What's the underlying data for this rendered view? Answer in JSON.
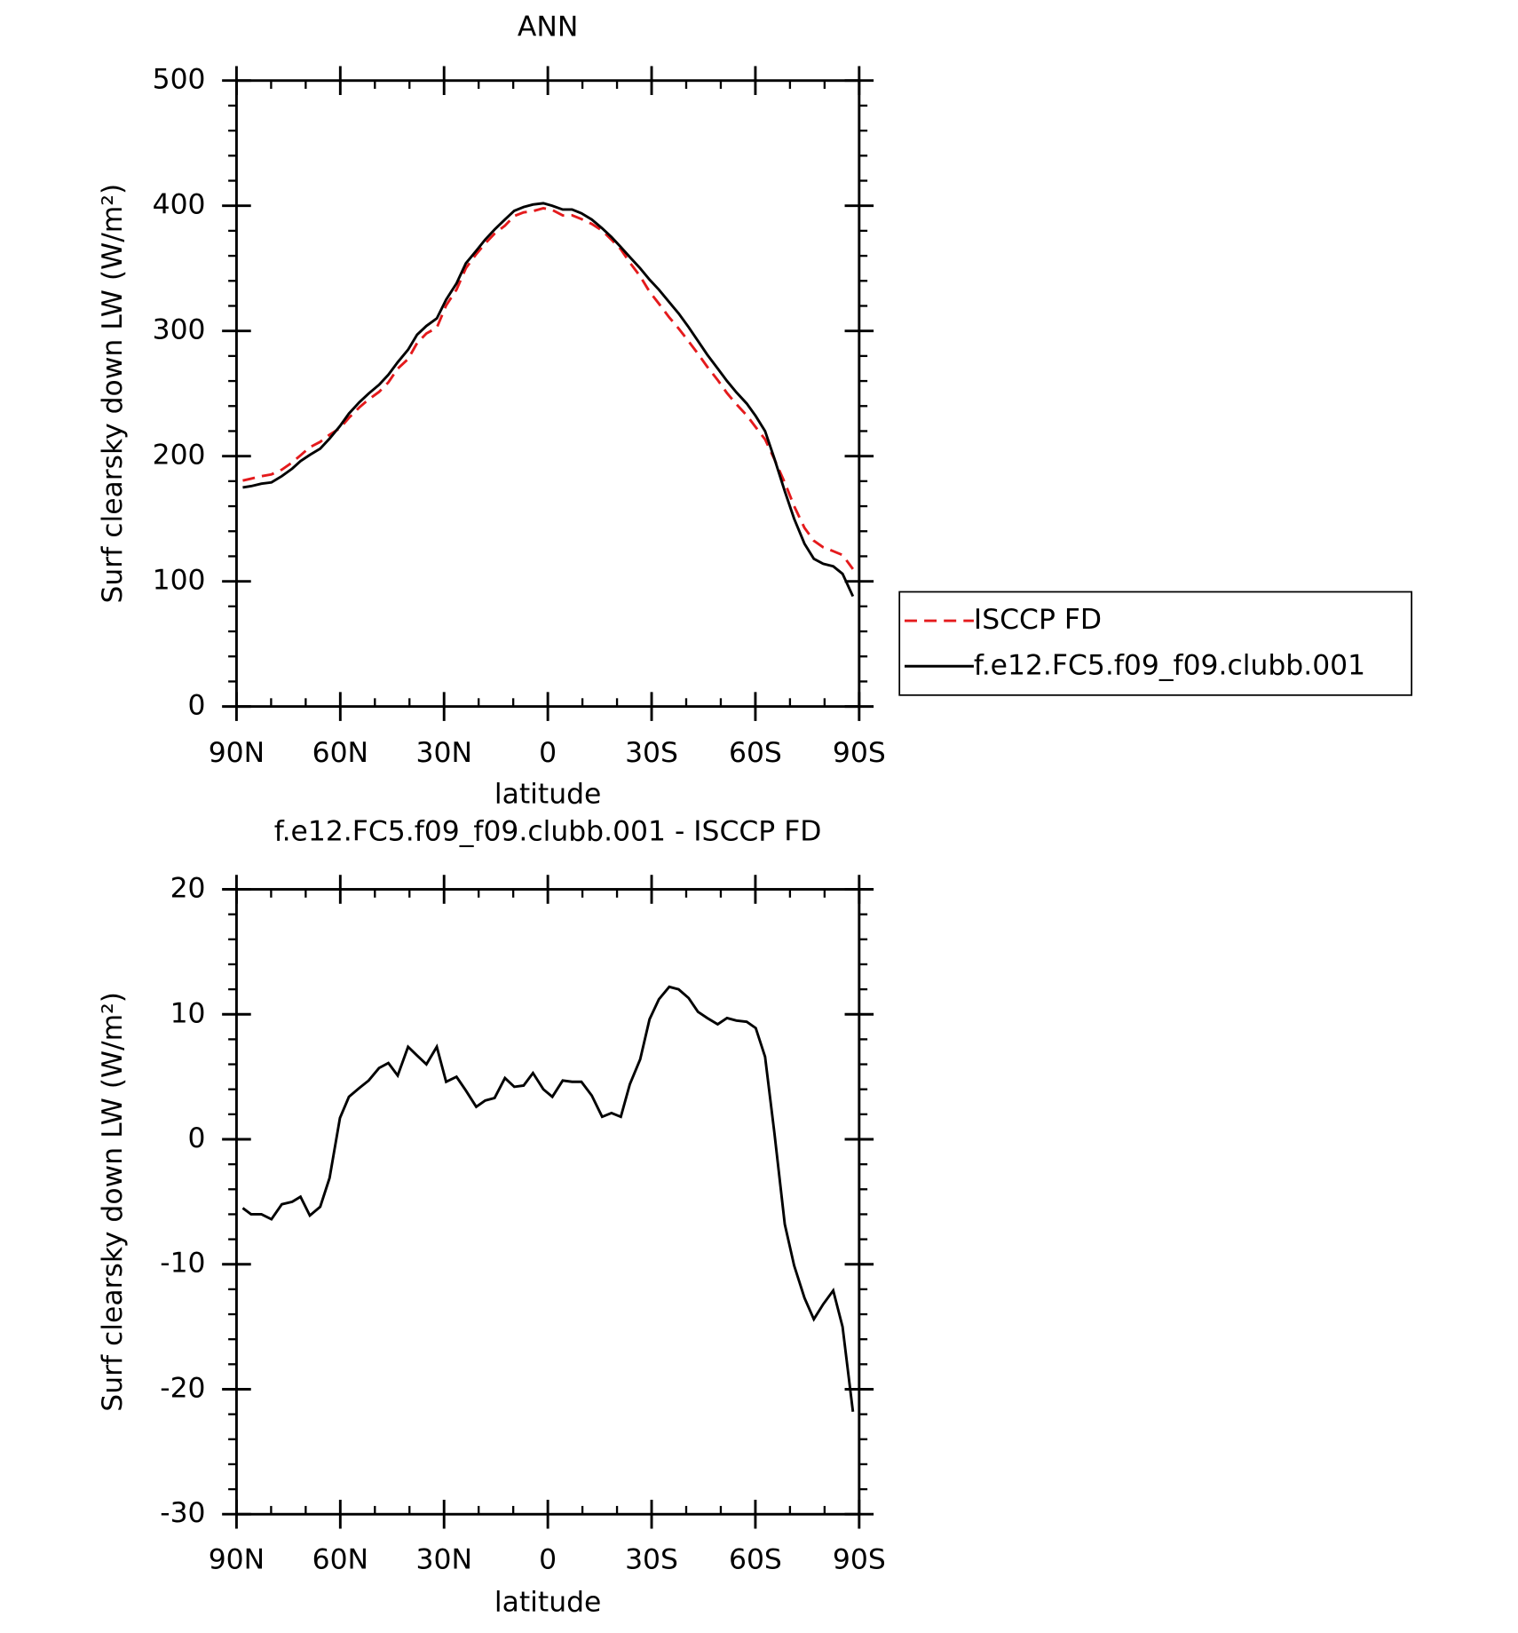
{
  "chart_data": [
    {
      "type": "line",
      "title": "ANN",
      "x_label": "latitude",
      "y_label": "Surf clearsky down LW (W/m²)",
      "x": [
        88.2,
        85.8,
        82.8,
        79.9,
        76.9,
        73.9,
        71.5,
        68.8,
        65.8,
        63.1,
        60.1,
        57.5,
        54.5,
        51.8,
        48.8,
        46.1,
        43.4,
        40.4,
        37.8,
        35.1,
        32.1,
        29.4,
        26.4,
        23.7,
        20.7,
        18.1,
        15.4,
        12.4,
        9.7,
        7.0,
        4.3,
        1.3,
        -1.3,
        -4.3,
        -7.0,
        -9.7,
        -12.7,
        -15.7,
        -18.4,
        -21.1,
        -23.7,
        -26.7,
        -29.4,
        -32.1,
        -35.1,
        -37.8,
        -40.7,
        -43.4,
        -46.1,
        -49.1,
        -51.8,
        -54.5,
        -57.5,
        -60.1,
        -62.8,
        -65.5,
        -68.5,
        -71.2,
        -74.2,
        -76.9,
        -79.6,
        -82.5,
        -85.2,
        -88.2
      ],
      "series": [
        {
          "name": "ISCCP FD",
          "color": "#e41a1c",
          "dash": true,
          "values": [
            180.5,
            182,
            184,
            185.4,
            189.2,
            195,
            200.6,
            207.1,
            211.4,
            217.1,
            222.3,
            230.6,
            238.9,
            245.3,
            251.3,
            258.9,
            269.9,
            277.6,
            290.3,
            298,
            302.6,
            320.4,
            333,
            350.1,
            361.4,
            369.9,
            377.7,
            384.1,
            391.8,
            394.7,
            395.7,
            398,
            396.6,
            392.3,
            392.4,
            389.4,
            385.5,
            380.2,
            372.9,
            365.2,
            354.6,
            343.6,
            331.4,
            321.8,
            310.8,
            302,
            291.7,
            281.8,
            271.3,
            260.8,
            250.3,
            241.5,
            232.6,
            223.1,
            213.4,
            197.5,
            178.8,
            160.1,
            142.7,
            132.4,
            127.2,
            124.1,
            121,
            109.8
          ]
        },
        {
          "name": "f.e12.FC5.f09_f09.clubb.001",
          "color": "#000000",
          "dash": false,
          "values": [
            175,
            176,
            178,
            179,
            184,
            190,
            196,
            201,
            206,
            214,
            224,
            234,
            243,
            250,
            257,
            265,
            275,
            285,
            297,
            304,
            310,
            325,
            338,
            354,
            364,
            373,
            381,
            389,
            396,
            399,
            401,
            402,
            400,
            397,
            397,
            394,
            389,
            382,
            375,
            367,
            359,
            350,
            341,
            333,
            323,
            314,
            303,
            292,
            281,
            270,
            260,
            251,
            242,
            232,
            220,
            198,
            172,
            150,
            130,
            118,
            114,
            112,
            106,
            88
          ]
        }
      ],
      "xlim": [
        90,
        -90
      ],
      "xticks": [
        {
          "value": 90,
          "label": "90N"
        },
        {
          "value": 60,
          "label": "60N"
        },
        {
          "value": 30,
          "label": "30N"
        },
        0,
        {
          "value": -30,
          "label": "30S"
        },
        {
          "value": -60,
          "label": "60S"
        },
        {
          "value": -90,
          "label": "90S"
        }
      ],
      "ylim": [
        0,
        500
      ],
      "yticks": [
        0,
        100,
        200,
        300,
        400,
        500
      ],
      "legend": "right"
    },
    {
      "type": "line",
      "title": "f.e12.FC5.f09_f09.clubb.001 - ISCCP FD",
      "x_label": "latitude",
      "y_label": "Surf clearsky down LW (W/m²)",
      "x": [
        88.2,
        85.8,
        82.8,
        79.9,
        76.9,
        73.9,
        71.5,
        68.8,
        65.8,
        63.1,
        60.1,
        57.5,
        54.5,
        51.8,
        48.8,
        46.1,
        43.4,
        40.4,
        37.8,
        35.1,
        32.1,
        29.4,
        26.4,
        23.7,
        20.7,
        18.1,
        15.4,
        12.4,
        9.7,
        7.0,
        4.3,
        1.3,
        -1.3,
        -4.3,
        -7.0,
        -9.7,
        -12.7,
        -15.7,
        -18.4,
        -21.1,
        -23.7,
        -26.7,
        -29.4,
        -32.1,
        -35.1,
        -37.8,
        -40.7,
        -43.4,
        -46.1,
        -49.1,
        -51.8,
        -54.5,
        -57.5,
        -60.1,
        -62.8,
        -65.5,
        -68.5,
        -71.2,
        -74.2,
        -76.9,
        -79.6,
        -82.5,
        -85.2,
        -88.2
      ],
      "series": [
        {
          "color": "#000000",
          "values": [
            -5.5,
            -6.0,
            -6.0,
            -6.4,
            -5.2,
            -5.0,
            -4.6,
            -6.1,
            -5.4,
            -3.1,
            1.7,
            3.4,
            4.1,
            4.7,
            5.7,
            6.1,
            5.1,
            7.4,
            6.7,
            6.0,
            7.4,
            4.6,
            5.0,
            3.9,
            2.6,
            3.1,
            3.3,
            4.9,
            4.2,
            4.3,
            5.3,
            4.0,
            3.4,
            4.7,
            4.6,
            4.6,
            3.5,
            1.8,
            2.1,
            1.8,
            4.4,
            6.4,
            9.6,
            11.2,
            12.2,
            12.0,
            11.3,
            10.2,
            9.7,
            9.2,
            9.7,
            9.5,
            9.4,
            8.9,
            6.6,
            0.5,
            -6.8,
            -10.1,
            -12.7,
            -14.4,
            -13.2,
            -12.1,
            -15.0,
            -21.8
          ]
        }
      ],
      "xlim": [
        90,
        -90
      ],
      "xticks": [
        {
          "value": 90,
          "label": "90N"
        },
        {
          "value": 60,
          "label": "60N"
        },
        {
          "value": 30,
          "label": "30N"
        },
        0,
        {
          "value": -30,
          "label": "30S"
        },
        {
          "value": -60,
          "label": "60S"
        },
        {
          "value": -90,
          "label": "90S"
        }
      ],
      "ylim": [
        -30,
        20
      ],
      "yticks": [
        -30,
        -20,
        -10,
        0,
        10,
        20
      ]
    }
  ]
}
